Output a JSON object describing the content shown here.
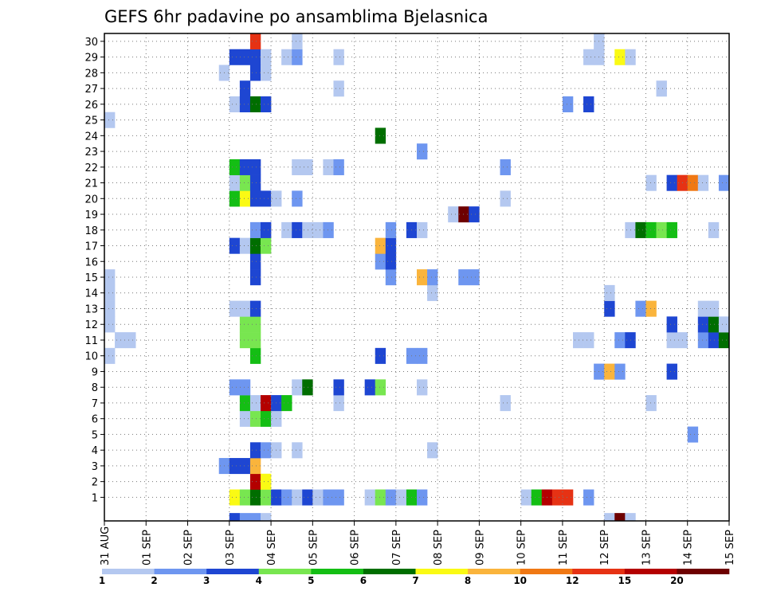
{
  "chart_data": {
    "type": "heatmap",
    "title": "GEFS 6hr padavine po ansamblima Bjelasnica",
    "x_tick_labels": [
      "31 AUG",
      "01 SEP",
      "02 SEP",
      "03 SEP",
      "04 SEP",
      "05 SEP",
      "06 SEP",
      "07 SEP",
      "08 SEP",
      "09 SEP",
      "10 SEP",
      "11 SEP",
      "12 SEP",
      "13 SEP",
      "14 SEP",
      "15 SEP"
    ],
    "y_tick_labels": [
      "1",
      "2",
      "3",
      "4",
      "5",
      "6",
      "7",
      "8",
      "9",
      "10",
      "11",
      "12",
      "13",
      "14",
      "15",
      "16",
      "17",
      "18",
      "19",
      "20",
      "21",
      "22",
      "23",
      "24",
      "25",
      "26",
      "27",
      "28",
      "29",
      "30"
    ],
    "y_range": [
      0,
      30
    ],
    "time_steps": 60,
    "steps_per_day": 4,
    "grid": "dotted",
    "legend": {
      "position": "bottom",
      "levels": [
        "1",
        "2",
        "3",
        "4",
        "5",
        "6",
        "7",
        "8",
        "10",
        "12",
        "15",
        "20"
      ],
      "colors": [
        "#b4c8f0",
        "#6e96f0",
        "#1e46d2",
        "#78e650",
        "#14be14",
        "#006e00",
        "#fafa14",
        "#fab43c",
        "#f07814",
        "#e63214",
        "#b40000",
        "#6e0000"
      ]
    },
    "cells_comment_free_format": "each cell: [member, time step index, color class 0-11]",
    "cells": [
      [
        0,
        12,
        6
      ],
      [
        0,
        13,
        3
      ],
      [
        0,
        14,
        5
      ],
      [
        0,
        15,
        3
      ],
      [
        0,
        16,
        2
      ],
      [
        0,
        17,
        1
      ],
      [
        0,
        18,
        0
      ],
      [
        0,
        19,
        2
      ],
      [
        0,
        20,
        0
      ],
      [
        0,
        21,
        1
      ],
      [
        0,
        22,
        1
      ],
      [
        0,
        25,
        0
      ],
      [
        0,
        26,
        3
      ],
      [
        0,
        27,
        1
      ],
      [
        0,
        28,
        0
      ],
      [
        0,
        29,
        4
      ],
      [
        0,
        30,
        1
      ],
      [
        0,
        40,
        0
      ],
      [
        0,
        41,
        4
      ],
      [
        0,
        42,
        10
      ],
      [
        0,
        43,
        9
      ],
      [
        0,
        44,
        9
      ],
      [
        0,
        46,
        1
      ],
      [
        1,
        14,
        10
      ],
      [
        1,
        15,
        6
      ],
      [
        2,
        11,
        1
      ],
      [
        2,
        12,
        2
      ],
      [
        2,
        13,
        2
      ],
      [
        2,
        14,
        7
      ],
      [
        3,
        14,
        2
      ],
      [
        3,
        15,
        1
      ],
      [
        3,
        16,
        0
      ],
      [
        3,
        18,
        0
      ],
      [
        3,
        31,
        0
      ],
      [
        4,
        56,
        1
      ],
      [
        5,
        13,
        0
      ],
      [
        5,
        14,
        3
      ],
      [
        5,
        15,
        4
      ],
      [
        5,
        16,
        0
      ],
      [
        6,
        13,
        4
      ],
      [
        6,
        14,
        0
      ],
      [
        6,
        15,
        10
      ],
      [
        6,
        16,
        2
      ],
      [
        6,
        17,
        4
      ],
      [
        6,
        22,
        0
      ],
      [
        6,
        38,
        0
      ],
      [
        6,
        52,
        0
      ],
      [
        7,
        12,
        1
      ],
      [
        7,
        13,
        1
      ],
      [
        7,
        18,
        0
      ],
      [
        7,
        19,
        5
      ],
      [
        7,
        22,
        2
      ],
      [
        7,
        25,
        2
      ],
      [
        7,
        26,
        3
      ],
      [
        7,
        30,
        0
      ],
      [
        8,
        47,
        1
      ],
      [
        8,
        48,
        7
      ],
      [
        8,
        49,
        1
      ],
      [
        8,
        54,
        2
      ],
      [
        9,
        0,
        0
      ],
      [
        9,
        14,
        4
      ],
      [
        9,
        26,
        2
      ],
      [
        9,
        29,
        1
      ],
      [
        9,
        30,
        1
      ],
      [
        10,
        1,
        0
      ],
      [
        10,
        2,
        0
      ],
      [
        10,
        13,
        3
      ],
      [
        10,
        14,
        3
      ],
      [
        10,
        45,
        0
      ],
      [
        10,
        46,
        0
      ],
      [
        10,
        49,
        1
      ],
      [
        10,
        50,
        2
      ],
      [
        10,
        54,
        0
      ],
      [
        10,
        55,
        0
      ],
      [
        10,
        57,
        1
      ],
      [
        10,
        58,
        2
      ],
      [
        10,
        59,
        5
      ],
      [
        11,
        0,
        0
      ],
      [
        11,
        13,
        3
      ],
      [
        11,
        14,
        3
      ],
      [
        11,
        54,
        2
      ],
      [
        11,
        57,
        2
      ],
      [
        11,
        58,
        5
      ],
      [
        11,
        59,
        0
      ],
      [
        12,
        0,
        0
      ],
      [
        12,
        12,
        0
      ],
      [
        12,
        13,
        0
      ],
      [
        12,
        14,
        2
      ],
      [
        12,
        48,
        2
      ],
      [
        12,
        51,
        1
      ],
      [
        12,
        52,
        7
      ],
      [
        12,
        57,
        0
      ],
      [
        12,
        58,
        0
      ],
      [
        13,
        0,
        0
      ],
      [
        13,
        31,
        0
      ],
      [
        13,
        48,
        0
      ],
      [
        14,
        0,
        0
      ],
      [
        14,
        14,
        2
      ],
      [
        14,
        27,
        1
      ],
      [
        14,
        30,
        7
      ],
      [
        14,
        31,
        1
      ],
      [
        14,
        34,
        1
      ],
      [
        14,
        35,
        1
      ],
      [
        15,
        14,
        2
      ],
      [
        15,
        26,
        1
      ],
      [
        15,
        27,
        2
      ],
      [
        16,
        12,
        2
      ],
      [
        16,
        13,
        0
      ],
      [
        16,
        14,
        5
      ],
      [
        16,
        15,
        3
      ],
      [
        16,
        26,
        7
      ],
      [
        16,
        27,
        2
      ],
      [
        17,
        14,
        1
      ],
      [
        17,
        15,
        2
      ],
      [
        17,
        17,
        0
      ],
      [
        17,
        18,
        2
      ],
      [
        17,
        19,
        0
      ],
      [
        17,
        20,
        0
      ],
      [
        17,
        21,
        1
      ],
      [
        17,
        27,
        1
      ],
      [
        17,
        29,
        2
      ],
      [
        17,
        30,
        0
      ],
      [
        17,
        50,
        0
      ],
      [
        17,
        51,
        5
      ],
      [
        17,
        52,
        4
      ],
      [
        17,
        53,
        3
      ],
      [
        17,
        54,
        4
      ],
      [
        17,
        58,
        0
      ],
      [
        18,
        33,
        0
      ],
      [
        18,
        34,
        11
      ],
      [
        18,
        35,
        2
      ],
      [
        19,
        12,
        4
      ],
      [
        19,
        13,
        6
      ],
      [
        19,
        14,
        2
      ],
      [
        19,
        15,
        2
      ],
      [
        19,
        16,
        0
      ],
      [
        19,
        18,
        1
      ],
      [
        19,
        38,
        0
      ],
      [
        20,
        12,
        0
      ],
      [
        20,
        13,
        3
      ],
      [
        20,
        14,
        2
      ],
      [
        20,
        52,
        0
      ],
      [
        20,
        54,
        2
      ],
      [
        20,
        55,
        9
      ],
      [
        20,
        56,
        8
      ],
      [
        20,
        57,
        0
      ],
      [
        20,
        59,
        1
      ],
      [
        21,
        12,
        4
      ],
      [
        21,
        13,
        2
      ],
      [
        21,
        14,
        2
      ],
      [
        21,
        18,
        0
      ],
      [
        21,
        19,
        0
      ],
      [
        21,
        21,
        0
      ],
      [
        21,
        22,
        1
      ],
      [
        21,
        38,
        1
      ],
      [
        22,
        30,
        1
      ],
      [
        23,
        26,
        5
      ],
      [
        24,
        0,
        0
      ],
      [
        25,
        12,
        0
      ],
      [
        25,
        13,
        2
      ],
      [
        25,
        14,
        5
      ],
      [
        25,
        15,
        2
      ],
      [
        25,
        44,
        1
      ],
      [
        25,
        46,
        2
      ],
      [
        26,
        13,
        2
      ],
      [
        26,
        22,
        0
      ],
      [
        26,
        53,
        0
      ],
      [
        27,
        11,
        0
      ],
      [
        27,
        14,
        2
      ],
      [
        27,
        15,
        0
      ],
      [
        28,
        12,
        2
      ],
      [
        28,
        13,
        2
      ],
      [
        28,
        14,
        2
      ],
      [
        28,
        15,
        0
      ],
      [
        28,
        17,
        0
      ],
      [
        28,
        18,
        1
      ],
      [
        28,
        22,
        0
      ],
      [
        28,
        46,
        0
      ],
      [
        28,
        47,
        0
      ],
      [
        28,
        49,
        6
      ],
      [
        28,
        50,
        0
      ],
      [
        29,
        18,
        0
      ],
      [
        29,
        14,
        9
      ],
      [
        29,
        47,
        0
      ],
      [
        30,
        12,
        2
      ],
      [
        30,
        13,
        1
      ],
      [
        30,
        14,
        1
      ],
      [
        30,
        15,
        0
      ],
      [
        30,
        48,
        0
      ],
      [
        30,
        49,
        11
      ],
      [
        30,
        50,
        0
      ]
    ]
  }
}
